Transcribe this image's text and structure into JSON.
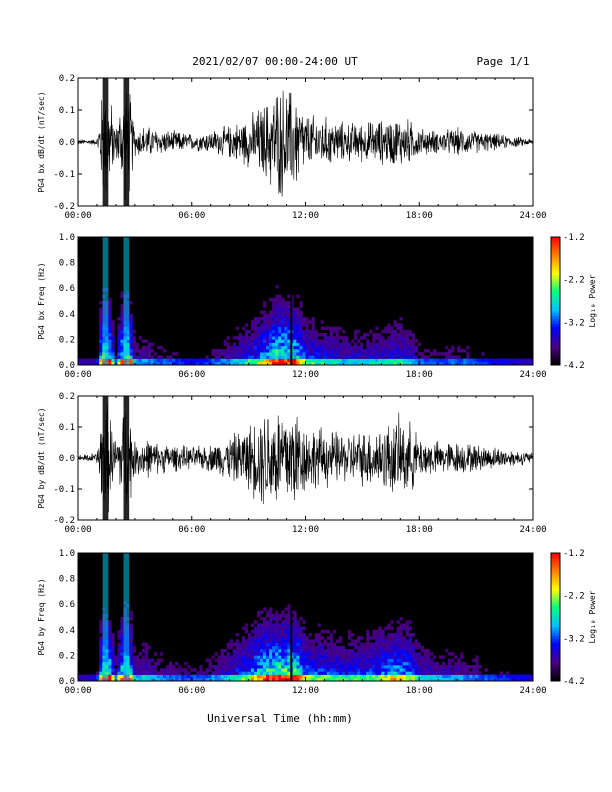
{
  "header": {
    "title": "2021/02/07  00:00-24:00 UT",
    "page": "Page 1/1"
  },
  "xaxis": {
    "label": "Universal Time (hh:mm)",
    "ticks": [
      "00:00",
      "06:00",
      "12:00",
      "18:00",
      "24:00"
    ],
    "range_hours": [
      0,
      24
    ]
  },
  "colorbar": {
    "label": "Log₁₀ Power",
    "ticks": [
      "-1.2",
      "-2.2",
      "-3.2",
      "-4.2"
    ],
    "range": [
      -4.2,
      -1.2
    ],
    "colors": [
      "#000000",
      "#4b0082",
      "#0000ff",
      "#00bfff",
      "#00ff80",
      "#ffff00",
      "#ff8000",
      "#ff0000"
    ]
  },
  "chart_data": [
    {
      "type": "line",
      "panel": "bx-waveform",
      "ylabel": "PG4 bx dB/dt (nT/sec)",
      "ylim": [
        -0.2,
        0.2
      ],
      "yticks": [
        "0.2",
        "0.1",
        "0.0",
        "-0.1",
        "-0.2"
      ],
      "series": [
        {
          "values_envelope": {
            "x_hours": [
              0,
              1,
              1.3,
              1.6,
              2,
              2.4,
              2.7,
              3,
              3.5,
              4,
              5,
              6,
              7,
              8,
              9,
              10,
              10.5,
              11,
              11.5,
              12,
              13,
              14,
              15,
              16,
              17,
              17.5,
              18,
              19,
              20,
              21,
              22,
              23,
              24
            ],
            "amplitude": [
              0.01,
              0.01,
              0.2,
              0.2,
              0.05,
              0.2,
              0.2,
              0.05,
              0.06,
              0.05,
              0.04,
              0.03,
              0.04,
              0.06,
              0.09,
              0.15,
              0.2,
              0.2,
              0.18,
              0.1,
              0.09,
              0.07,
              0.07,
              0.08,
              0.09,
              0.08,
              0.05,
              0.04,
              0.05,
              0.04,
              0.03,
              0.02,
              0.01
            ]
          }
        }
      ]
    },
    {
      "type": "heatmap",
      "panel": "bx-spectrogram",
      "ylabel": "PG4 bx Freq (Hz)",
      "ylim": [
        0,
        1.0
      ],
      "yticks": [
        "1.0",
        "0.8",
        "0.6",
        "0.4",
        "0.2",
        "0.0"
      ],
      "zlim": [
        -4.2,
        -1.2
      ]
    },
    {
      "type": "line",
      "panel": "by-waveform",
      "ylabel": "PG4 by dB/dt (nT/sec)",
      "ylim": [
        -0.2,
        0.2
      ],
      "yticks": [
        "0.2",
        "0.1",
        "0.0",
        "-0.1",
        "-0.2"
      ],
      "series": [
        {
          "values_envelope": {
            "x_hours": [
              0,
              1,
              1.3,
              1.6,
              2,
              2.4,
              2.7,
              3,
              3.5,
              4,
              5,
              6,
              7,
              8,
              9,
              10,
              10.5,
              11,
              11.5,
              12,
              13,
              14,
              15,
              16,
              17,
              17.5,
              18,
              19,
              20,
              21,
              22,
              23,
              24
            ],
            "amplitude": [
              0.01,
              0.02,
              0.2,
              0.2,
              0.06,
              0.2,
              0.2,
              0.06,
              0.08,
              0.06,
              0.05,
              0.04,
              0.05,
              0.08,
              0.12,
              0.2,
              0.2,
              0.2,
              0.2,
              0.12,
              0.11,
              0.09,
              0.1,
              0.12,
              0.15,
              0.13,
              0.08,
              0.06,
              0.06,
              0.05,
              0.04,
              0.03,
              0.02
            ]
          }
        }
      ]
    },
    {
      "type": "heatmap",
      "panel": "by-spectrogram",
      "ylabel": "PG4 by Freq (Hz)",
      "ylim": [
        0,
        1.0
      ],
      "yticks": [
        "1.0",
        "0.8",
        "0.6",
        "0.4",
        "0.2",
        "0.0"
      ],
      "zlim": [
        -4.2,
        -1.2
      ]
    }
  ]
}
